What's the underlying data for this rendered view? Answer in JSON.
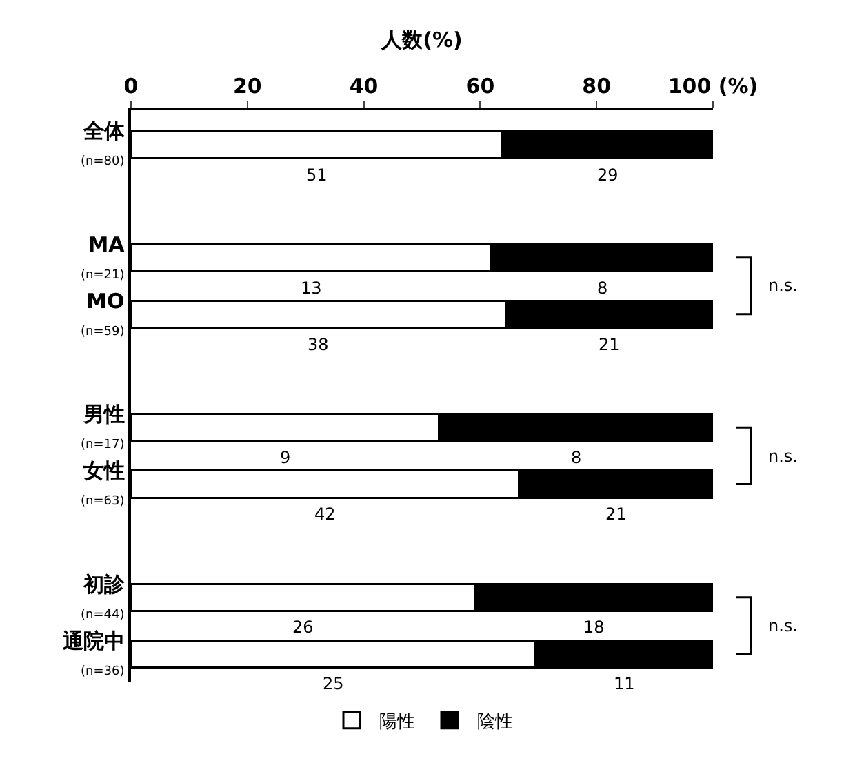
{
  "chart_data": {
    "type": "bar",
    "orientation": "horizontal",
    "stacked": true,
    "xlabel": "人数(%)",
    "categories": [
      "全体\n(n=80)",
      null,
      "MA\n(n=21)",
      "MO\n(n=59)",
      null,
      "男性\n(n=17)",
      "女性\n(n=63)",
      null,
      "初診\n(n=44)",
      "通院中\n(n=36)"
    ],
    "series": [
      {
        "name": "陽性",
        "color": "#ffffff",
        "values": [
          63.8,
          null,
          61.9,
          64.4,
          null,
          52.9,
          66.7,
          null,
          59.1,
          69.4
        ]
      },
      {
        "name": "陰性",
        "color": "#000000",
        "values": [
          36.2,
          null,
          38.1,
          35.6,
          null,
          47.1,
          33.3,
          null,
          40.9,
          30.6
        ]
      }
    ],
    "xlim": [
      0,
      100
    ],
    "xticks": [
      0,
      20,
      40,
      60,
      80,
      {
        "value": 100,
        "label": "100 (%)"
      }
    ],
    "annotations": [
      "n.s.",
      "n.s.",
      "n.s.",
      "51",
      "29",
      "13",
      "8",
      "38",
      "21",
      "9",
      "8",
      "42",
      "21",
      "26",
      "18",
      "25",
      "11"
    ],
    "legend": "bottom"
  }
}
